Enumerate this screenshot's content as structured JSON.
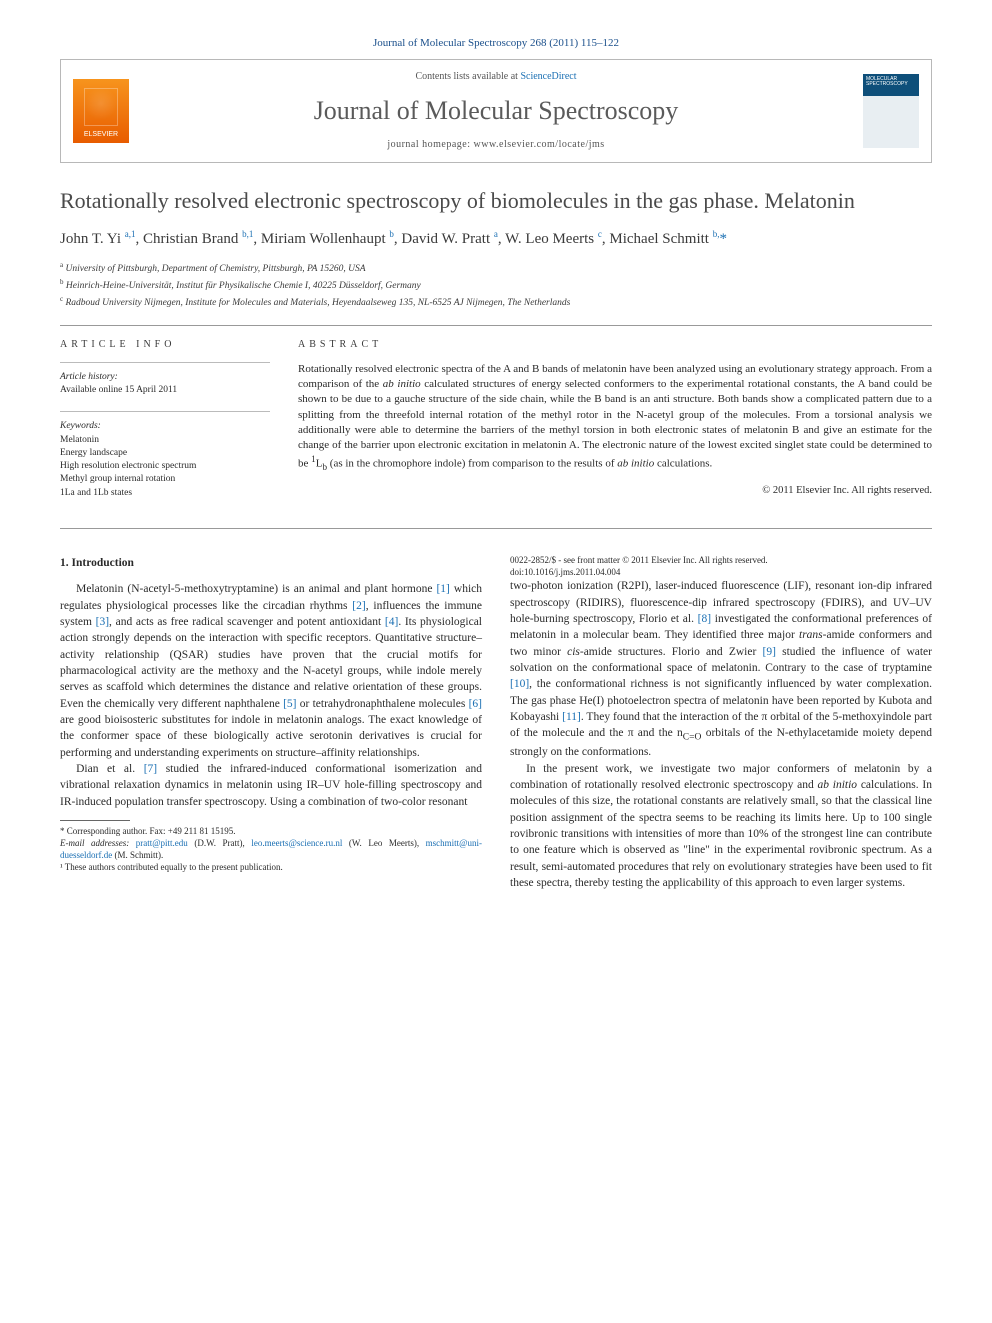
{
  "journal_ref": "Journal of Molecular Spectroscopy 268 (2011) 115–122",
  "header": {
    "contents_prefix": "Contents lists available at ",
    "contents_link": "ScienceDirect",
    "journal_name": "Journal of Molecular Spectroscopy",
    "homepage_prefix": "journal homepage: ",
    "homepage_url": "www.elsevier.com/locate/jms",
    "publisher_logo_label": "ELSEVIER",
    "cover_label": "MOLECULAR SPECTROSCOPY"
  },
  "title": "Rotationally resolved electronic spectroscopy of biomolecules in the gas phase. Melatonin",
  "authors_html": "John T. Yi <span class='sup'>a,1</span>, Christian Brand <span class='sup'>b,1</span>, Miriam Wollenhaupt <span class='sup'>b</span>, David W. Pratt <span class='sup'>a</span>, W. Leo Meerts <span class='sup'>c</span>, Michael Schmitt <span class='sup'>b,</span><span class='star'>*</span>",
  "affiliations": {
    "a": "University of Pittsburgh, Department of Chemistry, Pittsburgh, PA 15260, USA",
    "b": "Heinrich-Heine-Universität, Institut für Physikalische Chemie I, 40225 Düsseldorf, Germany",
    "c": "Radboud University Nijmegen, Institute for Molecules and Materials, Heyendaalseweg 135, NL-6525 AJ Nijmegen, The Netherlands"
  },
  "article_info": {
    "head": "ARTICLE INFO",
    "history_label": "Article history:",
    "history_value": "Available online 15 April 2011",
    "keywords_label": "Keywords:",
    "keywords": [
      "Melatonin",
      "Energy landscape",
      "High resolution electronic spectrum",
      "Methyl group internal rotation",
      "1La and 1Lb states"
    ]
  },
  "abstract": {
    "head": "ABSTRACT",
    "text": "Rotationally resolved electronic spectra of the A and B bands of melatonin have been analyzed using an evolutionary strategy approach. From a comparison of the ab initio calculated structures of energy selected conformers to the experimental rotational constants, the A band could be shown to be due to a gauche structure of the side chain, while the B band is an anti structure. Both bands show a complicated pattern due to a splitting from the threefold internal rotation of the methyl rotor in the N-acetyl group of the molecules. From a torsional analysis we additionally were able to determine the barriers of the methyl torsion in both electronic states of melatonin B and give an estimate for the change of the barrier upon electronic excitation in melatonin A. The electronic nature of the lowest excited singlet state could be determined to be ¹Lb (as in the chromophore indole) from comparison to the results of ab initio calculations.",
    "copyright": "© 2011 Elsevier Inc. All rights reserved."
  },
  "sections": {
    "intro_head": "1. Introduction",
    "para1": "Melatonin (N-acetyl-5-methoxytryptamine) is an animal and plant hormone [1] which regulates physiological processes like the circadian rhythms [2], influences the immune system [3], and acts as free radical scavenger and potent antioxidant [4]. Its physiological action strongly depends on the interaction with specific receptors. Quantitative structure–activity relationship (QSAR) studies have proven that the crucial motifs for pharmacological activity are the methoxy and the N-acetyl groups, while indole merely serves as scaffold which determines the distance and relative orientation of these groups. Even the chemically very different naphthalene [5] or tetrahydronaphthalene molecules [6] are good bioisosteric substitutes for indole in melatonin analogs. The exact knowledge of the conformer space of these biologically active serotonin derivatives is crucial for performing and understanding experiments on structure–affinity relationships.",
    "para2": "Dian et al. [7] studied the infrared-induced conformational isomerization and vibrational relaxation dynamics in melatonin using IR–UV hole-filling spectroscopy and IR-induced population transfer spectroscopy. Using a combination of two-color resonant",
    "para3": "two-photon ionization (R2PI), laser-induced fluorescence (LIF), resonant ion-dip infrared spectroscopy (RIDIRS), fluorescence-dip infrared spectroscopy (FDIRS), and UV–UV hole-burning spectroscopy, Florio et al. [8] investigated the conformational preferences of melatonin in a molecular beam. They identified three major trans-amide conformers and two minor cis-amide structures. Florio and Zwier [9] studied the influence of water solvation on the conformational space of melatonin. Contrary to the case of tryptamine [10], the conformational richness is not significantly influenced by water complexation. The gas phase He(I) photoelectron spectra of melatonin have been reported by Kubota and Kobayashi [11]. They found that the interaction of the π orbital of the 5-methoxyindole part of the molecule and the π and the nC=O orbitals of the N-ethylacetamide moiety depend strongly on the conformations.",
    "para4": "In the present work, we investigate two major conformers of melatonin by a combination of rotationally resolved electronic spectroscopy and ab initio calculations. In molecules of this size, the rotational constants are relatively small, so that the classical line position assignment of the spectra seems to be reaching its limits here. Up to 100 single rovibronic transitions with intensities of more than 10% of the strongest line can contribute to one feature which is observed as \"line\" in the experimental rovibronic spectrum. As a result, semi-automated procedures that rely on evolutionary strategies have been used to fit these spectra, thereby testing the applicability of this approach to even larger systems."
  },
  "footnotes": {
    "corr_label": "* Corresponding author. Fax: +49 211 81 15195.",
    "email_label": "E-mail addresses:",
    "emails": [
      {
        "addr": "pratt@pitt.edu",
        "who": "(D.W. Pratt)"
      },
      {
        "addr": "leo.meerts@science.ru.nl",
        "who": "(W. Leo Meerts)"
      },
      {
        "addr": "mschmitt@uni-duesseldorf.de",
        "who": "(M. Schmitt)."
      }
    ],
    "equal": "¹ These authors contributed equally to the present publication."
  },
  "doi": {
    "line1": "0022-2852/$ - see front matter © 2011 Elsevier Inc. All rights reserved.",
    "line2": "doi:10.1016/j.jms.2011.04.004"
  },
  "colors": {
    "link": "#1a6fb3",
    "text": "#2a2a2a",
    "rule": "#999999",
    "elsevier_orange": "#f7941d"
  }
}
